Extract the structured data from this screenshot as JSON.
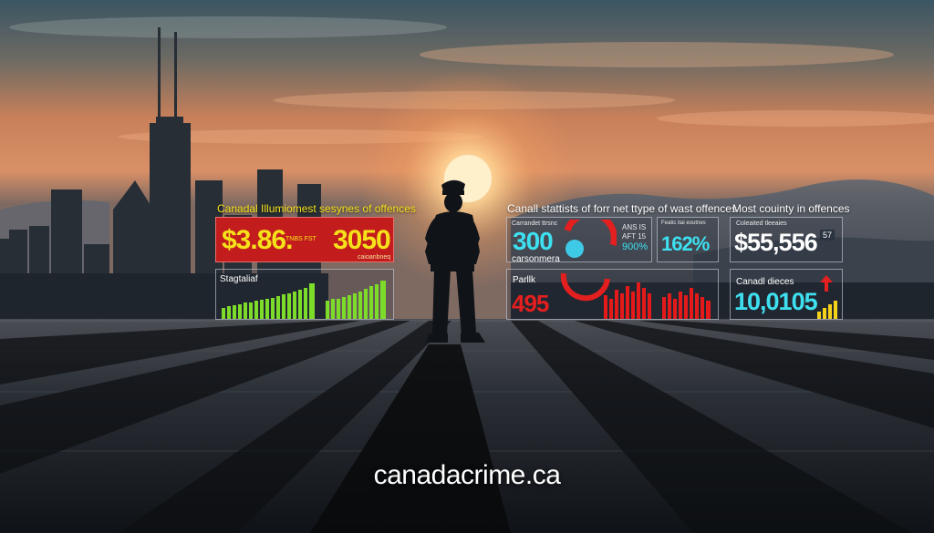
{
  "footer": {
    "site": "canadacrime.ca"
  },
  "panels": {
    "left": {
      "title": "Canadal Illumiomest sesynes of offences",
      "top": {
        "value1": "$3.86.",
        "tiny1": "TNBS FST",
        "value2": "3050",
        "tiny2": "caioanbneq"
      },
      "bottom": {
        "label": "Stagtaliaf"
      }
    },
    "middle": {
      "title": "Canall stattists of forr net ttype of wast offences",
      "top_left": {
        "tiny": "Carrandet ttrsnc",
        "value": "300",
        "sub": "carsonmera"
      },
      "top_mid": {
        "line1": "ANS IS",
        "line2": "AFT 15",
        "line3": "900%"
      },
      "top_right": {
        "tiny": "Featic itai eoutnes",
        "value": "162%"
      },
      "bottom": {
        "label": "Parllk",
        "value": "495"
      }
    },
    "right": {
      "title": "Most couinty in offences",
      "top": {
        "tiny": "Coleaited tleeaies",
        "value": "$55,556",
        "tag": "57"
      },
      "bottom": {
        "label": "Canadl dieces",
        "value": "10,0105"
      }
    }
  },
  "colors": {
    "sky_top": "#3e5a68",
    "sky_mid": "#c9794f",
    "sun": "#ffd9a0",
    "value_yellow": "#f5e21a",
    "value_cyan": "#3ee0f0",
    "value_red": "#e41f1f",
    "bar_green": "#7ddc2a",
    "bar_red": "#e41a1a",
    "panel_red": "#c51d1d"
  }
}
